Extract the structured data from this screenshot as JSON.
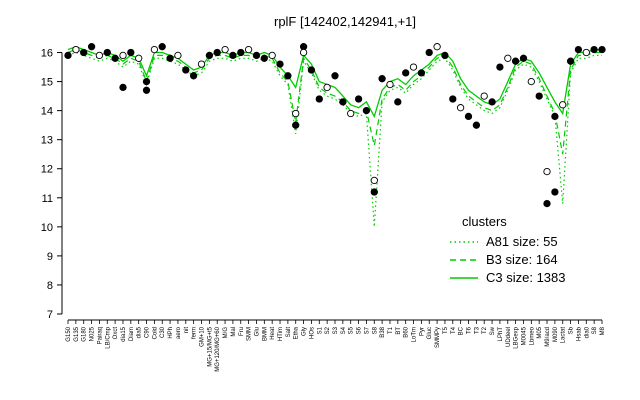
{
  "chart_data": {
    "type": "line",
    "title": "rplF [142402,142941,+1]",
    "xlabel": "",
    "ylabel": "",
    "ylim": [
      7,
      16.5
    ],
    "yticks": [
      7,
      8,
      9,
      10,
      11,
      12,
      13,
      14,
      15,
      16
    ],
    "x_tick_labels": [
      "G150",
      "G135",
      "G180",
      "N025",
      "Pairaq",
      "LB/Cmp",
      "Oxct",
      "dia15",
      "Diam",
      "dia5",
      "C90",
      "Cold",
      "C30",
      "HPh",
      "aero",
      "nit",
      "ferm",
      "GM+10",
      "MG+15/MG+t5",
      "MG+120/MG+60",
      "M/G",
      "Mal",
      "Fru",
      "SMM",
      "Glu",
      "BMM",
      "Heat",
      "HTim",
      "Salt",
      "Etha",
      "Gly",
      "HOs",
      "S1",
      "S2",
      "S3",
      "S4",
      "S5",
      "S6",
      "S7",
      "S8",
      "B38",
      "T1",
      "BT",
      "B60",
      "LoTm",
      "Pyr",
      "Gluc",
      "SMMPy",
      "T5",
      "T4",
      "BC",
      "T6",
      "T3",
      "T2",
      "Sw",
      "LPhT",
      "UDdeel",
      "LBGexp",
      "M0045",
      "Lbmeo",
      "M05",
      "M9/acd",
      "M090",
      "Lactat",
      "Sb",
      "Hsab",
      "dia0",
      "S8",
      "M8"
    ],
    "legend": {
      "title": "clusters",
      "placement": "right",
      "entries": [
        {
          "label": "A81 size: 55",
          "style": "dotted",
          "color": "#00cc00"
        },
        {
          "label": "B3 size: 164",
          "style": "dashed",
          "color": "#00cc00"
        },
        {
          "label": "C3 size: 1383",
          "style": "solid",
          "color": "#00cc00"
        }
      ]
    },
    "series": [
      {
        "style": "solid",
        "values": [
          16.1,
          16.2,
          16.1,
          16.0,
          15.9,
          16.0,
          15.9,
          15.7,
          15.9,
          15.8,
          15.2,
          16.0,
          16.0,
          15.9,
          15.8,
          15.6,
          15.4,
          15.5,
          15.9,
          16.0,
          16.0,
          15.9,
          16.0,
          16.0,
          15.9,
          16.0,
          15.9,
          15.5,
          15.2,
          14.8,
          15.9,
          15.6,
          15.0,
          14.9,
          14.8,
          14.5,
          14.2,
          14.1,
          14.3,
          13.8,
          14.7,
          15.0,
          15.1,
          14.9,
          15.2,
          15.4,
          15.6,
          15.9,
          16.0,
          15.7,
          15.1,
          14.7,
          14.5,
          14.3,
          14.2,
          14.4,
          15.0,
          15.6,
          15.8,
          15.7,
          15.3,
          14.8,
          14.3,
          13.9,
          15.6,
          16.0,
          16.0,
          16.1,
          16.1
        ]
      },
      {
        "style": "dashed",
        "values": [
          16.0,
          16.1,
          16.0,
          15.9,
          15.8,
          15.9,
          15.8,
          15.6,
          15.8,
          15.7,
          15.0,
          15.9,
          15.9,
          15.8,
          15.7,
          15.5,
          15.3,
          15.4,
          15.8,
          15.9,
          15.9,
          15.8,
          15.9,
          15.9,
          15.8,
          15.9,
          15.8,
          15.3,
          15.0,
          13.6,
          15.8,
          15.4,
          14.8,
          14.6,
          14.5,
          14.3,
          14.0,
          13.9,
          14.0,
          12.8,
          14.4,
          14.8,
          14.9,
          14.7,
          15.0,
          15.2,
          15.5,
          15.8,
          15.9,
          15.5,
          14.9,
          14.5,
          14.3,
          14.1,
          14.0,
          14.2,
          14.8,
          15.5,
          15.7,
          15.6,
          15.1,
          14.5,
          13.9,
          12.5,
          15.4,
          15.9,
          15.9,
          16.0,
          16.0
        ]
      },
      {
        "style": "dotted",
        "values": [
          15.9,
          16.0,
          15.9,
          15.8,
          15.7,
          15.8,
          15.7,
          15.5,
          15.7,
          15.6,
          14.9,
          15.8,
          15.8,
          15.7,
          15.6,
          15.4,
          15.2,
          15.3,
          15.7,
          15.8,
          15.8,
          15.7,
          15.8,
          15.8,
          15.7,
          15.8,
          15.7,
          15.2,
          14.9,
          13.2,
          15.7,
          15.3,
          14.7,
          14.5,
          14.4,
          14.2,
          13.9,
          13.8,
          13.9,
          10.0,
          14.3,
          14.7,
          14.8,
          14.6,
          14.9,
          15.1,
          15.4,
          15.7,
          15.8,
          15.4,
          14.8,
          14.4,
          14.2,
          14.0,
          13.9,
          14.1,
          14.7,
          15.4,
          15.6,
          15.5,
          15.0,
          14.4,
          13.8,
          10.8,
          15.3,
          15.8,
          15.8,
          15.9,
          15.9
        ]
      }
    ],
    "points": [
      {
        "x": 0,
        "y": 15.9
      },
      {
        "x": 1,
        "y": 16.1
      },
      {
        "x": 2,
        "y": 16.0
      },
      {
        "x": 3,
        "y": 16.2
      },
      {
        "x": 4,
        "y": 15.9
      },
      {
        "x": 5,
        "y": 16.0
      },
      {
        "x": 6,
        "y": 15.8
      },
      {
        "x": 7,
        "y": 15.9
      },
      {
        "x": 7,
        "y": 14.8
      },
      {
        "x": 8,
        "y": 16.0
      },
      {
        "x": 9,
        "y": 15.8
      },
      {
        "x": 10,
        "y": 14.7
      },
      {
        "x": 10,
        "y": 15.0
      },
      {
        "x": 11,
        "y": 16.1
      },
      {
        "x": 12,
        "y": 16.2
      },
      {
        "x": 13,
        "y": 15.8
      },
      {
        "x": 14,
        "y": 15.9
      },
      {
        "x": 15,
        "y": 15.4
      },
      {
        "x": 16,
        "y": 15.2
      },
      {
        "x": 17,
        "y": 15.6
      },
      {
        "x": 18,
        "y": 15.9
      },
      {
        "x": 19,
        "y": 16.0
      },
      {
        "x": 20,
        "y": 16.1
      },
      {
        "x": 21,
        "y": 15.9
      },
      {
        "x": 22,
        "y": 16.0
      },
      {
        "x": 23,
        "y": 16.1
      },
      {
        "x": 24,
        "y": 15.9
      },
      {
        "x": 25,
        "y": 15.8
      },
      {
        "x": 26,
        "y": 15.9
      },
      {
        "x": 27,
        "y": 15.6
      },
      {
        "x": 28,
        "y": 15.2
      },
      {
        "x": 29,
        "y": 13.9
      },
      {
        "x": 29,
        "y": 13.5
      },
      {
        "x": 30,
        "y": 16.2
      },
      {
        "x": 30,
        "y": 16.0
      },
      {
        "x": 31,
        "y": 15.4
      },
      {
        "x": 32,
        "y": 14.4
      },
      {
        "x": 33,
        "y": 14.8
      },
      {
        "x": 34,
        "y": 15.2
      },
      {
        "x": 35,
        "y": 14.3
      },
      {
        "x": 36,
        "y": 13.9
      },
      {
        "x": 37,
        "y": 14.4
      },
      {
        "x": 38,
        "y": 14.0
      },
      {
        "x": 39,
        "y": 11.6
      },
      {
        "x": 39,
        "y": 11.2
      },
      {
        "x": 40,
        "y": 15.1
      },
      {
        "x": 41,
        "y": 14.9
      },
      {
        "x": 42,
        "y": 14.3
      },
      {
        "x": 43,
        "y": 15.3
      },
      {
        "x": 44,
        "y": 15.5
      },
      {
        "x": 45,
        "y": 15.3
      },
      {
        "x": 46,
        "y": 16.0
      },
      {
        "x": 47,
        "y": 16.2
      },
      {
        "x": 48,
        "y": 15.9
      },
      {
        "x": 49,
        "y": 14.4
      },
      {
        "x": 50,
        "y": 14.1
      },
      {
        "x": 51,
        "y": 13.8
      },
      {
        "x": 52,
        "y": 13.5
      },
      {
        "x": 53,
        "y": 14.5
      },
      {
        "x": 54,
        "y": 14.3
      },
      {
        "x": 55,
        "y": 15.5
      },
      {
        "x": 56,
        "y": 15.8
      },
      {
        "x": 57,
        "y": 15.7
      },
      {
        "x": 58,
        "y": 15.8
      },
      {
        "x": 59,
        "y": 15.0
      },
      {
        "x": 60,
        "y": 14.5
      },
      {
        "x": 61,
        "y": 10.8
      },
      {
        "x": 61,
        "y": 11.9
      },
      {
        "x": 62,
        "y": 11.2
      },
      {
        "x": 62,
        "y": 13.8
      },
      {
        "x": 63,
        "y": 14.2
      },
      {
        "x": 64,
        "y": 15.7
      },
      {
        "x": 65,
        "y": 16.1
      },
      {
        "x": 66,
        "y": 16.0
      },
      {
        "x": 67,
        "y": 16.1
      },
      {
        "x": 68,
        "y": 16.1
      }
    ]
  },
  "colors": {
    "line": "#00cc00",
    "point_fill": "#000000",
    "point_open": "#ffffff",
    "axis": "#000000"
  }
}
